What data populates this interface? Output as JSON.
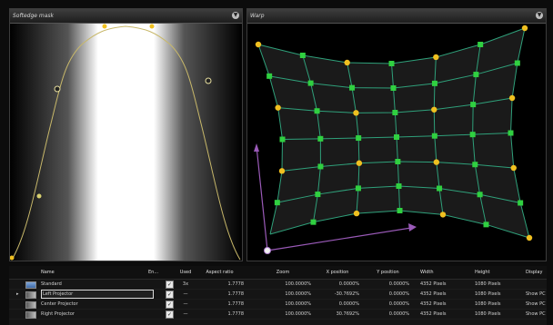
{
  "softedge_panel": {
    "title": "Softedge mask"
  },
  "warp_panel": {
    "title": "Warp"
  },
  "table": {
    "headers": {
      "name": "Name",
      "enabled": "En...",
      "used": "Used",
      "aspect": "Aspect ratio",
      "zoom": "Zoom",
      "xpos": "X position",
      "ypos": "Y position",
      "width": "Width",
      "height": "Height",
      "display": "Display"
    },
    "rows": [
      {
        "name": "Standard",
        "used": "3x",
        "aspect": "1.7778",
        "zoom": "100.0000%",
        "xpos": "0.0000%",
        "ypos": "0.0000%",
        "width": "4352 Pixels",
        "height": "1080 Pixels",
        "display": ""
      },
      {
        "name": "Left Projector",
        "used": "—",
        "aspect": "1.7778",
        "zoom": "100.0000%",
        "xpos": "-30.7692%",
        "ypos": "0.0000%",
        "width": "4352 Pixels",
        "height": "1080 Pixels",
        "display": "Show PC"
      },
      {
        "name": "Center Projector",
        "used": "—",
        "aspect": "1.7778",
        "zoom": "100.0000%",
        "xpos": "0.0000%",
        "ypos": "0.0000%",
        "width": "4352 Pixels",
        "height": "1080 Pixels",
        "display": "Show PC"
      },
      {
        "name": "Right Projector",
        "used": "—",
        "aspect": "1.7778",
        "zoom": "100.0000%",
        "xpos": "30.7692%",
        "ypos": "0.0000%",
        "width": "4352 Pixels",
        "height": "1080 Pixels",
        "display": "Show PC"
      }
    ]
  },
  "colors": {
    "curve": "#c8b86a",
    "handle_yellow": "#f0c020",
    "handle_green": "#30d040",
    "warp_line": "#2fa07a",
    "axis_arrow": "#9a5ab8"
  },
  "icons": {
    "pin": "pin-icon",
    "check": "check-icon",
    "row-arrow": "row-arrow-icon"
  }
}
